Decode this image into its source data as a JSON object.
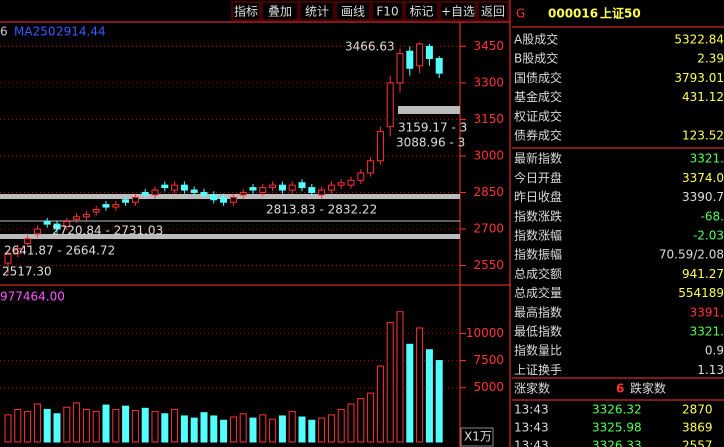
{
  "toolbar": [
    "指标",
    "叠加",
    "统计",
    "画线",
    "F10",
    "标记",
    "+自选",
    "返回"
  ],
  "price_pane": {
    "indicator_prefix": "6",
    "indicator_name": "MA250",
    "indicator_value": "2914.44",
    "ylim": [
      2470,
      3550
    ],
    "yticks": [
      2550,
      2700,
      2850,
      3000,
      3150,
      3300,
      3450
    ],
    "annotations": [
      "3466.63",
      "3159.17 - 3",
      "3088.96 - 3",
      "2813.83 - 2832.22",
      "2720.84 - 2731.03",
      "2641.87 - 2664.72",
      "2517.30"
    ],
    "open": [
      2560,
      2600,
      2640,
      2680,
      2730,
      2720,
      2710,
      2740,
      2750,
      2770,
      2800,
      2790,
      2820,
      2810,
      2850,
      2840,
      2880,
      2860,
      2880,
      2860,
      2850,
      2840,
      2830,
      2810,
      2840,
      2870,
      2850,
      2870,
      2880,
      2860,
      2890,
      2870,
      2840,
      2860,
      2880,
      2880,
      2900,
      2930,
      2980,
      3120,
      3300,
      3430,
      3370,
      3450,
      3400
    ],
    "close": [
      2600,
      2620,
      2660,
      2700,
      2720,
      2700,
      2730,
      2750,
      2760,
      2780,
      2790,
      2800,
      2810,
      2830,
      2840,
      2860,
      2870,
      2880,
      2860,
      2850,
      2840,
      2820,
      2810,
      2830,
      2850,
      2860,
      2870,
      2880,
      2860,
      2880,
      2870,
      2850,
      2860,
      2880,
      2890,
      2900,
      2930,
      2980,
      3100,
      3300,
      3420,
      3360,
      3460,
      3400,
      3340
    ],
    "high": [
      2615,
      2635,
      2675,
      2715,
      2745,
      2735,
      2745,
      2765,
      2775,
      2795,
      2815,
      2815,
      2835,
      2845,
      2865,
      2875,
      2895,
      2895,
      2895,
      2875,
      2865,
      2855,
      2845,
      2845,
      2865,
      2885,
      2885,
      2895,
      2895,
      2895,
      2905,
      2885,
      2875,
      2895,
      2905,
      2915,
      2945,
      2995,
      3120,
      3330,
      3440,
      3450,
      3466.63,
      3460,
      3410
    ],
    "low": [
      2517.3,
      2585,
      2625,
      2665,
      2705,
      2685,
      2695,
      2725,
      2735,
      2755,
      2775,
      2775,
      2795,
      2795,
      2825,
      2825,
      2855,
      2845,
      2845,
      2835,
      2825,
      2805,
      2795,
      2795,
      2825,
      2845,
      2835,
      2855,
      2845,
      2845,
      2855,
      2835,
      2825,
      2845,
      2865,
      2865,
      2885,
      2915,
      2965,
      3080,
      3260,
      3330,
      3340,
      3370,
      3320
    ]
  },
  "volume_pane": {
    "header": "977464.00",
    "unit": "X1万",
    "ylim": [
      0,
      14000
    ],
    "yticks": [
      5000,
      7500,
      10000
    ],
    "volume": [
      2500,
      3000,
      2800,
      3500,
      3000,
      2600,
      3200,
      3600,
      3000,
      2800,
      3400,
      3000,
      3300,
      2900,
      3100,
      2800,
      2600,
      3000,
      2400,
      2200,
      2700,
      2400,
      2000,
      2300,
      2600,
      2200,
      2500,
      2100,
      2400,
      2800,
      2300,
      2000,
      2200,
      2500,
      3000,
      3500,
      4000,
      4500,
      7000,
      11000,
      12000,
      9000,
      10500,
      8500,
      7500
    ]
  },
  "quote": {
    "tag": "G",
    "code": "000016",
    "name": "上证50",
    "rows": [
      [
        "A股成交",
        "5322.84"
      ],
      [
        "B股成交",
        "2.39"
      ],
      [
        "国债成交",
        "3793.01"
      ],
      [
        "基金成交",
        "431.12"
      ],
      [
        "权证成交",
        ""
      ],
      [
        "债券成交",
        "123.52"
      ],
      [
        "最新指数",
        "3321."
      ],
      [
        "今日开盘",
        "3374.0"
      ],
      [
        "昨日收盘",
        "3390.7"
      ],
      [
        "指数涨跌",
        "-68."
      ],
      [
        "指数涨幅",
        "-2.03"
      ],
      [
        "指数振幅",
        "70.59/2.08"
      ],
      [
        "总成交额",
        "941.27"
      ],
      [
        "总成交量",
        "554189"
      ],
      [
        "最高指数",
        "3391."
      ],
      [
        "最低指数",
        "3321."
      ],
      [
        "指数量比",
        "0.9"
      ],
      [
        "上证换手",
        "1.13"
      ]
    ],
    "breadth": [
      "涨家数",
      "6",
      "跌家数"
    ],
    "ticks": [
      [
        "13:43",
        "3326.32",
        "2870"
      ],
      [
        "13:43",
        "3325.98",
        "3869"
      ],
      [
        "13:43",
        "3326.33",
        "2557"
      ]
    ]
  }
}
